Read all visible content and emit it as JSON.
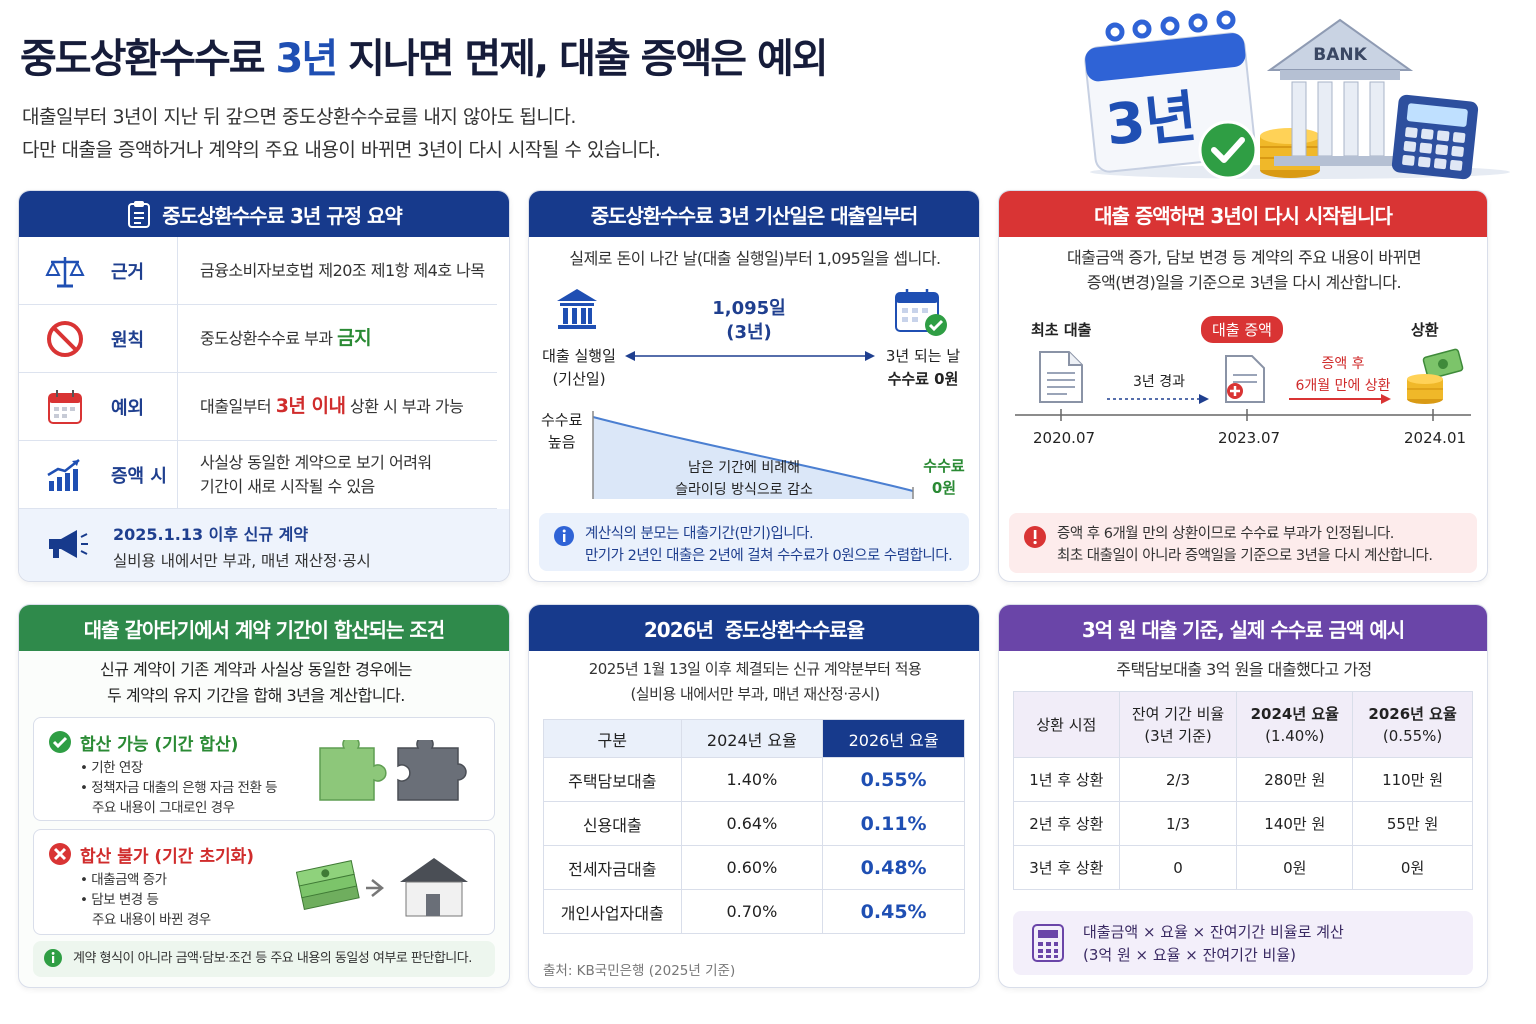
{
  "header": {
    "title_prefix": "중도상환수수료 ",
    "title_highlight": "3년",
    "title_suffix": " 지나면 면제, 대출 증액은 예외",
    "subtitle_1": "대출일부터 3년이 지난 뒤 갚으면 중도상환수수료를 내지 않아도 됩니다.",
    "subtitle_2": "다만 대출을 증액하거나 계약의 주요 내용이 바뀌면 3년이 다시 시작될 수 있습니다.",
    "illustration_calendar_text": "3년",
    "illustration_bank_text": "BANK"
  },
  "card_summary": {
    "title": "중도상환수수료 3년 규정 요약",
    "rows": [
      {
        "label": "근거",
        "text": "금융소비자보호법 제20조 제1항 제4호 나목",
        "icon": "scales-icon"
      },
      {
        "label": "원칙",
        "text_pre": "중도상환수수료 부과 ",
        "text_strong": "금지",
        "icon": "prohibited-icon"
      },
      {
        "label": "예외",
        "text_pre": "대출일부터 ",
        "text_strong": "3년 이내",
        "text_post": " 상환 시 부과 가능",
        "icon": "calendar-icon"
      },
      {
        "label": "증액 시",
        "text_1": "사실상 동일한 계약으로 보기 어려워",
        "text_2": "기간이 새로 시작될 수 있음",
        "icon": "chart-up-icon"
      }
    ],
    "notice_title": "2025.1.13 이후 신규 계약",
    "notice_text": "실비용 내에서만 부과, 매년 재산정·공시"
  },
  "card_start": {
    "title": "중도상환수수료 3년 기산일은 대출일부터",
    "intro": "실제로 돈이 나간 날(대출 실행일)부터 1,095일을 셉니다.",
    "left_label_1": "대출 실행일",
    "left_label_2": "(기산일)",
    "center_label_1": "1,095일",
    "center_label_2": "(3년)",
    "right_label_1": "3년 되는 날",
    "right_label_2": "수수료 0원",
    "curve_high_1": "수수료",
    "curve_high_2": "높음",
    "curve_mid_1": "남은 기간에 비례해",
    "curve_mid_2": "슬라이딩 방식으로 감소",
    "curve_low_1": "수수료",
    "curve_low_2": "0원",
    "info_1": "계산식의 분모는 대출기간(만기)입니다.",
    "info_2": "만기가 2년인 대출은 2년에 걸쳐 수수료가 0원으로 수렴합니다."
  },
  "card_increase": {
    "title": "대출 증액하면 3년이 다시 시작됩니다",
    "intro_1": "대출금액 증가, 담보 변경 등 계약의 주요 내용이 바뀌면",
    "intro_2": "증액(변경)일을 기준으로 3년을 다시 계산합니다.",
    "stage_1": "최초 대출",
    "stage_2": "대출 증액",
    "stage_3": "상환",
    "arrow_1": "3년 경과",
    "arrow_2_1": "증액 후",
    "arrow_2_2": "6개월 만에 상환",
    "date_1": "2020.07",
    "date_2": "2023.07",
    "date_3": "2024.01",
    "warn_1": "증액 후 6개월 만의 상환이므로 수수료 부과가 인정됩니다.",
    "warn_2": "최초 대출일이 아니라 증액일을 기준으로 3년을 다시 계산합니다."
  },
  "card_merge": {
    "title": "대출 갈아타기에서 계약 기간이 합산되는 조건",
    "intro_1": "신규 계약이 기존 계약과 사실상 동일한 경우에는",
    "intro_2": "두 계약의 유지 기간을 합해 3년을 계산합니다.",
    "ok_title": "합산 가능 (기간 합산)",
    "ok_items": [
      "• 기한 연장",
      "• 정책자금 대출의 은행 자금 전환 등",
      "  주요 내용이 그대로인 경우"
    ],
    "no_title": "합산 불가 (기간 초기화)",
    "no_items": [
      "• 대출금액 증가",
      "• 담보 변경 등",
      "  주요 내용이 바뀐 경우"
    ],
    "note": "계약 형식이 아니라 금액·담보·조건 등 주요 내용의 동일성 여부로 판단합니다."
  },
  "card_rates": {
    "title": "2026년  중도상환수수료율",
    "intro_1": "2025년 1월 13일 이후 체결되는 신규 계약분부터 적용",
    "intro_2": "(실비용 내에서만 부과, 매년 재산정·공시)",
    "headers": [
      "구분",
      "2024년 요율",
      "2026년 요율"
    ],
    "rows": [
      [
        "주택담보대출",
        "1.40%",
        "0.55%"
      ],
      [
        "신용대출",
        "0.64%",
        "0.11%"
      ],
      [
        "전세자금대출",
        "0.60%",
        "0.48%"
      ],
      [
        "개인사업자대출",
        "0.70%",
        "0.45%"
      ]
    ],
    "source": "출처: KB국민은행 (2025년 기준)"
  },
  "card_example": {
    "title": "3억 원 대출 기준, 실제 수수료 금액 예시",
    "intro": "주택담보대출 3억 원을 대출했다고 가정",
    "headers": [
      {
        "l1": "상환 시점",
        "l2": ""
      },
      {
        "l1": "잔여 기간 비율",
        "l2": "(3년 기준)"
      },
      {
        "l1": "2024년 요율",
        "l2": "(1.40%)"
      },
      {
        "l1": "2026년 요율",
        "l2": "(0.55%)"
      }
    ],
    "rows": [
      [
        "1년 후 상환",
        "2/3",
        "280만 원",
        "110만 원"
      ],
      [
        "2년 후 상환",
        "1/3",
        "140만 원",
        "55만 원"
      ],
      [
        "3년 후 상환",
        "0",
        "0원",
        "0원"
      ]
    ],
    "formula_1": "대출금액 × 요율 × 잔여기간 비율로 계산",
    "formula_2": "(3억 원 × 요율 × 잔여기간 비율)"
  },
  "colors": {
    "navy": "#173a8c",
    "red": "#d93434",
    "green": "#2f8a4b",
    "purple": "#6a45a8",
    "accent_blue": "#1f4fb3"
  }
}
